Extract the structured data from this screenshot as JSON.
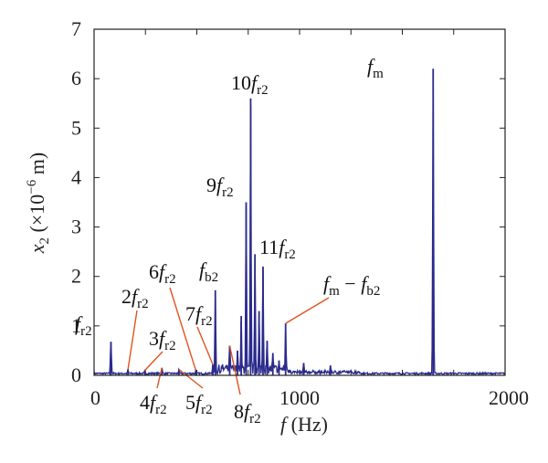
{
  "chart_data": {
    "type": "line",
    "title": "",
    "xlabel": "f (Hz)",
    "ylabel": "x2 (×10−6 m)",
    "xlim": [
      0,
      2000
    ],
    "ylim": [
      0,
      7
    ],
    "x_ticks": [
      0,
      1000,
      2000
    ],
    "y_ticks": [
      0,
      1,
      2,
      3,
      4,
      5,
      6,
      7
    ],
    "grid": false,
    "line_color": "#2b2b8c",
    "series": [
      {
        "peaks": [
          {
            "x": 82,
            "y": 0.68
          },
          {
            "x": 165,
            "y": 0.12
          },
          {
            "x": 247,
            "y": 0.1
          },
          {
            "x": 330,
            "y": 0.15
          },
          {
            "x": 413,
            "y": 0.12
          },
          {
            "x": 495,
            "y": 0.1
          },
          {
            "x": 578,
            "y": 0.22
          },
          {
            "x": 590,
            "y": 1.72
          },
          {
            "x": 660,
            "y": 0.6
          },
          {
            "x": 698,
            "y": 0.5
          },
          {
            "x": 716,
            "y": 1.2
          },
          {
            "x": 740,
            "y": 3.5
          },
          {
            "x": 762,
            "y": 5.6
          },
          {
            "x": 783,
            "y": 2.45
          },
          {
            "x": 803,
            "y": 1.3
          },
          {
            "x": 822,
            "y": 2.2
          },
          {
            "x": 842,
            "y": 0.7
          },
          {
            "x": 870,
            "y": 0.45
          },
          {
            "x": 900,
            "y": 0.3
          },
          {
            "x": 932,
            "y": 1.05
          },
          {
            "x": 1020,
            "y": 0.25
          },
          {
            "x": 1150,
            "y": 0.2
          },
          {
            "x": 1650,
            "y": 6.2
          }
        ]
      }
    ],
    "annotations": [
      {
        "label": "fr2",
        "points_to": [
          82,
          0.68
        ]
      },
      {
        "label": "2fr2",
        "points_to": [
          165,
          0.12
        ]
      },
      {
        "label": "3fr2",
        "points_to": [
          247,
          0.1
        ]
      },
      {
        "label": "4fr2",
        "points_to": [
          330,
          0.15
        ]
      },
      {
        "label": "5fr2",
        "points_to": [
          413,
          0.12
        ]
      },
      {
        "label": "6fr2",
        "points_to": [
          495,
          0.1
        ]
      },
      {
        "label": "7fr2",
        "points_to": [
          578,
          0.22
        ]
      },
      {
        "label": "fb2",
        "points_to": [
          590,
          1.72
        ]
      },
      {
        "label": "8fr2",
        "points_to": [
          660,
          0.6
        ]
      },
      {
        "label": "9fr2",
        "points_to": [
          740,
          3.5
        ]
      },
      {
        "label": "10fr2",
        "points_to": [
          762,
          5.6
        ]
      },
      {
        "label": "11fr2",
        "points_to": [
          822,
          2.2
        ]
      },
      {
        "label": "fm−fb2",
        "points_to": [
          932,
          1.05
        ]
      },
      {
        "label": "fm",
        "points_to": [
          1650,
          6.2
        ]
      }
    ]
  }
}
